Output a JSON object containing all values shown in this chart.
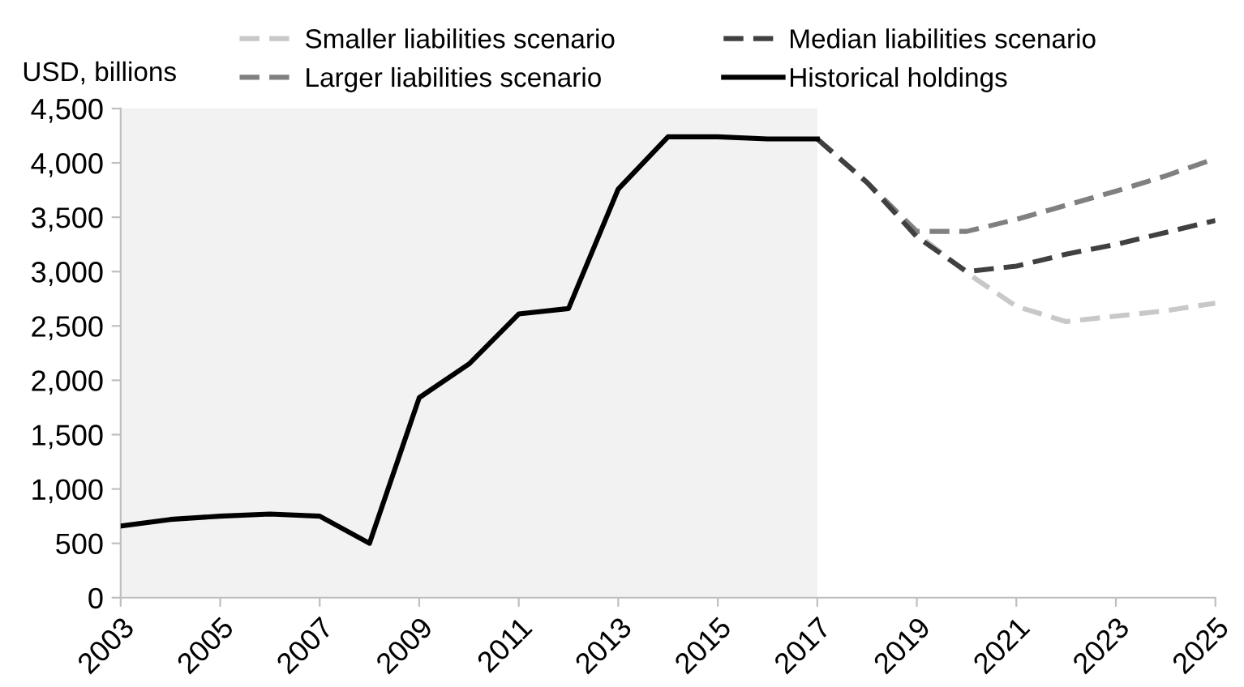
{
  "chart_data": {
    "type": "line",
    "ylabel": "USD, billions",
    "xlim": [
      2003,
      2025
    ],
    "xticks": [
      2003,
      2005,
      2007,
      2009,
      2011,
      2013,
      2015,
      2017,
      2019,
      2021,
      2023,
      2025
    ],
    "ylim": [
      0,
      4500
    ],
    "yticks": [
      {
        "value": 0,
        "label": "0"
      },
      {
        "value": 500,
        "label": "500"
      },
      {
        "value": 1000,
        "label": "1,000"
      },
      {
        "value": 1500,
        "label": "1,500"
      },
      {
        "value": 2000,
        "label": "2,000"
      },
      {
        "value": 2500,
        "label": "2,500"
      },
      {
        "value": 3000,
        "label": "3,000"
      },
      {
        "value": 3500,
        "label": "3,500"
      },
      {
        "value": 4000,
        "label": "4,000"
      },
      {
        "value": 4500,
        "label": "4,500"
      }
    ],
    "grid": false,
    "legend": "top",
    "bands": [
      {
        "axis": "x",
        "from": 2003,
        "to": 2017,
        "color": "#f2f2f2"
      }
    ],
    "series": [
      {
        "name": "Smaller liabilities scenario",
        "color": "#c8c8c8",
        "line_style": "dashed",
        "x": [
          2017,
          2018,
          2019,
          2020,
          2021,
          2022,
          2023,
          2024,
          2025
        ],
        "values": [
          4220,
          3820,
          3350,
          2990,
          2680,
          2540,
          2590,
          2640,
          2710
        ]
      },
      {
        "name": "Larger liabilities scenario",
        "color": "#808080",
        "line_style": "dashed",
        "x": [
          2017,
          2018,
          2019,
          2020,
          2021,
          2022,
          2023,
          2024,
          2025
        ],
        "values": [
          4220,
          3820,
          3370,
          3370,
          3480,
          3610,
          3740,
          3880,
          4040
        ]
      },
      {
        "name": "Median liabilities scenario",
        "color": "#404040",
        "line_style": "dashed",
        "x": [
          2017,
          2018,
          2019,
          2020,
          2021,
          2022,
          2023,
          2024,
          2025
        ],
        "values": [
          4220,
          3820,
          3320,
          3000,
          3050,
          3160,
          3250,
          3360,
          3470
        ]
      },
      {
        "name": "Historical holdings",
        "color": "#000000",
        "line_style": "solid",
        "x": [
          2003,
          2004,
          2005,
          2006,
          2007,
          2008,
          2009,
          2010,
          2011,
          2012,
          2013,
          2014,
          2015,
          2016,
          2017
        ],
        "values": [
          660,
          720,
          750,
          770,
          750,
          500,
          1840,
          2150,
          2610,
          2660,
          3760,
          4240,
          4240,
          4220,
          4220
        ]
      }
    ]
  }
}
